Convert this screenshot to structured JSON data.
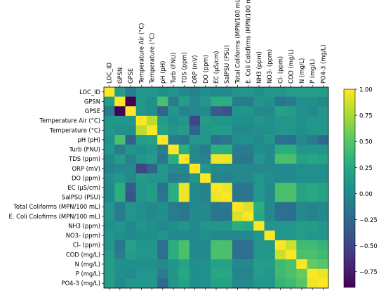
{
  "chart_data": {
    "type": "heatmap",
    "title": "",
    "xlabel": "",
    "ylabel": "",
    "variables_x": [
      "LOC_ID",
      "GPSN",
      "GPSE",
      "Temperature Air (°C)",
      "Temperature (°C)",
      "pH (pH)",
      "Turb (FNU)",
      "TDS (ppm)",
      "ORP (mV)",
      "DO (ppm)",
      "EC (µS/cm)",
      "SalPSU (PSU)",
      "Total Coliforms (MPN/100 mL)",
      "E. Coli Colofirms (MPN/100 mL)",
      "NH3 (ppm)",
      "NO3- (ppm)",
      "Cl- (ppm)",
      "COD (mg/L)",
      "N (mg/L)",
      "P  (mg/L)",
      "PO4-3 (mg/L)"
    ],
    "variables_y": [
      "LOC_ID",
      "GPSN",
      "GPSE",
      "Temperature Air (°C)",
      "Temperature (°C)",
      "pH (pH)",
      "Turb (FNU)",
      "TDS (ppm)",
      "ORP (mV)",
      "DO (ppm)",
      "EC (µS/cm)",
      "SalPSU (PSU)",
      "Total Coliforms (MPN/100 mL)",
      "E. Coli Colofirms (MPN/100 mL)",
      "NH3 (ppm)",
      "NO3- (ppm)",
      "Cl- (ppm)",
      "COD (mg/L)",
      "N (mg/L)",
      "P  (mg/L)",
      "PO4-3 (mg/L)"
    ],
    "values": [
      [
        1.0,
        0.15,
        -0.1,
        0.1,
        0.1,
        0.05,
        0.1,
        0.0,
        -0.05,
        0.05,
        0.0,
        0.0,
        0.1,
        0.1,
        0.05,
        0.1,
        0.1,
        0.15,
        0.15,
        0.15,
        0.15
      ],
      [
        0.15,
        1.0,
        -0.9,
        0.1,
        0.05,
        0.45,
        -0.1,
        0.15,
        0.0,
        0.1,
        0.3,
        0.3,
        -0.1,
        -0.1,
        0.1,
        0.05,
        -0.15,
        -0.1,
        0.05,
        0.05,
        0.0
      ],
      [
        -0.1,
        -0.9,
        1.0,
        0.1,
        0.05,
        -0.3,
        0.1,
        -0.05,
        0.0,
        0.0,
        -0.35,
        -0.4,
        0.1,
        0.1,
        0.0,
        0.0,
        0.2,
        0.15,
        0.05,
        0.0,
        0.1
      ],
      [
        0.1,
        0.1,
        0.1,
        1.0,
        0.8,
        0.15,
        0.05,
        0.1,
        -0.5,
        0.15,
        0.1,
        0.1,
        0.05,
        0.05,
        0.1,
        0.05,
        0.1,
        0.1,
        0.05,
        0.1,
        0.1
      ],
      [
        0.1,
        0.05,
        0.05,
        0.8,
        1.0,
        0.2,
        0.1,
        0.15,
        -0.3,
        0.1,
        0.15,
        0.15,
        0.0,
        0.0,
        0.05,
        0.05,
        0.1,
        0.1,
        0.05,
        0.1,
        0.1
      ],
      [
        0.05,
        0.45,
        -0.3,
        0.15,
        0.2,
        1.0,
        -0.1,
        -0.15,
        0.1,
        0.1,
        -0.2,
        -0.15,
        0.05,
        0.05,
        0.0,
        0.1,
        -0.2,
        -0.2,
        0.0,
        -0.1,
        -0.25
      ],
      [
        0.1,
        -0.1,
        0.1,
        0.05,
        0.1,
        -0.1,
        1.0,
        0.3,
        0.0,
        -0.1,
        0.3,
        0.3,
        -0.1,
        -0.1,
        0.05,
        0.0,
        0.3,
        0.3,
        0.1,
        0.1,
        0.1
      ],
      [
        0.0,
        0.15,
        -0.05,
        0.1,
        0.15,
        -0.15,
        0.3,
        1.0,
        0.0,
        -0.05,
        0.95,
        0.95,
        -0.15,
        -0.15,
        0.1,
        0.0,
        0.45,
        0.45,
        0.2,
        0.25,
        0.2
      ],
      [
        -0.05,
        0.0,
        0.0,
        -0.5,
        -0.3,
        0.1,
        0.0,
        0.0,
        1.0,
        0.1,
        0.0,
        0.0,
        0.0,
        0.0,
        0.0,
        0.0,
        0.0,
        0.0,
        0.05,
        0.05,
        0.05
      ],
      [
        0.05,
        0.1,
        0.0,
        0.15,
        0.1,
        0.1,
        -0.1,
        -0.05,
        0.1,
        1.0,
        -0.05,
        -0.05,
        0.0,
        0.0,
        0.1,
        0.05,
        0.0,
        0.0,
        0.05,
        0.05,
        0.05
      ],
      [
        0.0,
        0.3,
        -0.35,
        0.1,
        0.15,
        -0.2,
        0.3,
        0.95,
        0.0,
        -0.05,
        1.0,
        0.95,
        -0.15,
        -0.15,
        0.1,
        0.0,
        0.45,
        0.45,
        0.2,
        0.25,
        0.2
      ],
      [
        0.0,
        0.3,
        -0.4,
        0.1,
        0.15,
        -0.15,
        0.3,
        0.95,
        0.0,
        -0.05,
        0.95,
        1.0,
        -0.15,
        -0.15,
        0.1,
        0.0,
        0.45,
        0.45,
        0.2,
        0.25,
        0.2
      ],
      [
        0.1,
        -0.1,
        0.1,
        0.05,
        0.0,
        0.05,
        -0.1,
        -0.15,
        0.0,
        0.0,
        -0.15,
        -0.15,
        1.0,
        0.9,
        0.3,
        0.0,
        -0.2,
        -0.2,
        0.0,
        -0.05,
        0.0
      ],
      [
        0.1,
        -0.1,
        0.1,
        0.05,
        0.0,
        0.05,
        -0.1,
        -0.15,
        0.0,
        0.0,
        -0.15,
        -0.15,
        0.9,
        1.0,
        0.25,
        0.0,
        -0.2,
        -0.2,
        0.0,
        -0.05,
        0.0
      ],
      [
        0.05,
        0.1,
        0.0,
        0.1,
        0.05,
        0.0,
        0.05,
        0.1,
        0.0,
        0.1,
        0.1,
        0.1,
        0.3,
        0.25,
        1.0,
        0.1,
        0.1,
        0.1,
        0.15,
        0.15,
        0.1
      ],
      [
        0.1,
        0.05,
        0.0,
        0.05,
        0.05,
        0.1,
        0.0,
        0.0,
        0.0,
        0.05,
        0.0,
        0.0,
        0.0,
        0.0,
        0.1,
        1.0,
        0.1,
        0.1,
        0.15,
        0.1,
        0.1
      ],
      [
        0.1,
        -0.15,
        0.2,
        0.1,
        0.1,
        -0.2,
        0.3,
        0.45,
        0.0,
        0.0,
        0.45,
        0.45,
        -0.2,
        -0.2,
        0.1,
        0.1,
        1.0,
        0.85,
        0.4,
        0.4,
        0.35
      ],
      [
        0.15,
        -0.1,
        0.15,
        0.1,
        0.1,
        -0.2,
        0.3,
        0.45,
        0.0,
        0.0,
        0.45,
        0.45,
        -0.2,
        -0.2,
        0.1,
        0.1,
        0.85,
        1.0,
        0.45,
        0.45,
        0.4
      ],
      [
        0.15,
        0.05,
        0.05,
        0.05,
        0.05,
        0.0,
        0.1,
        0.2,
        0.05,
        0.05,
        0.2,
        0.2,
        0.0,
        0.0,
        0.15,
        0.15,
        0.4,
        0.45,
        1.0,
        0.55,
        0.5
      ],
      [
        0.15,
        0.05,
        0.0,
        0.1,
        0.1,
        -0.1,
        0.1,
        0.25,
        0.05,
        0.05,
        0.25,
        0.25,
        -0.05,
        -0.05,
        0.15,
        0.1,
        0.4,
        0.45,
        0.55,
        1.0,
        0.95
      ],
      [
        0.15,
        0.0,
        0.1,
        0.1,
        0.1,
        -0.25,
        0.1,
        0.2,
        0.05,
        0.05,
        0.2,
        0.2,
        0.0,
        0.0,
        0.1,
        0.1,
        0.35,
        0.4,
        0.5,
        0.95,
        1.0
      ]
    ],
    "colormap": "viridis",
    "vmin": -0.9,
    "vmax": 1.0,
    "colorbar_ticks": [
      "1.00",
      "0.75",
      "0.50",
      "0.25",
      "0.00",
      "−0.25",
      "−0.50",
      "−0.75"
    ],
    "colorbar_tick_values": [
      1.0,
      0.75,
      0.5,
      0.25,
      0.0,
      -0.25,
      -0.5,
      -0.75
    ],
    "grid": false,
    "legend": "colorbar right"
  }
}
